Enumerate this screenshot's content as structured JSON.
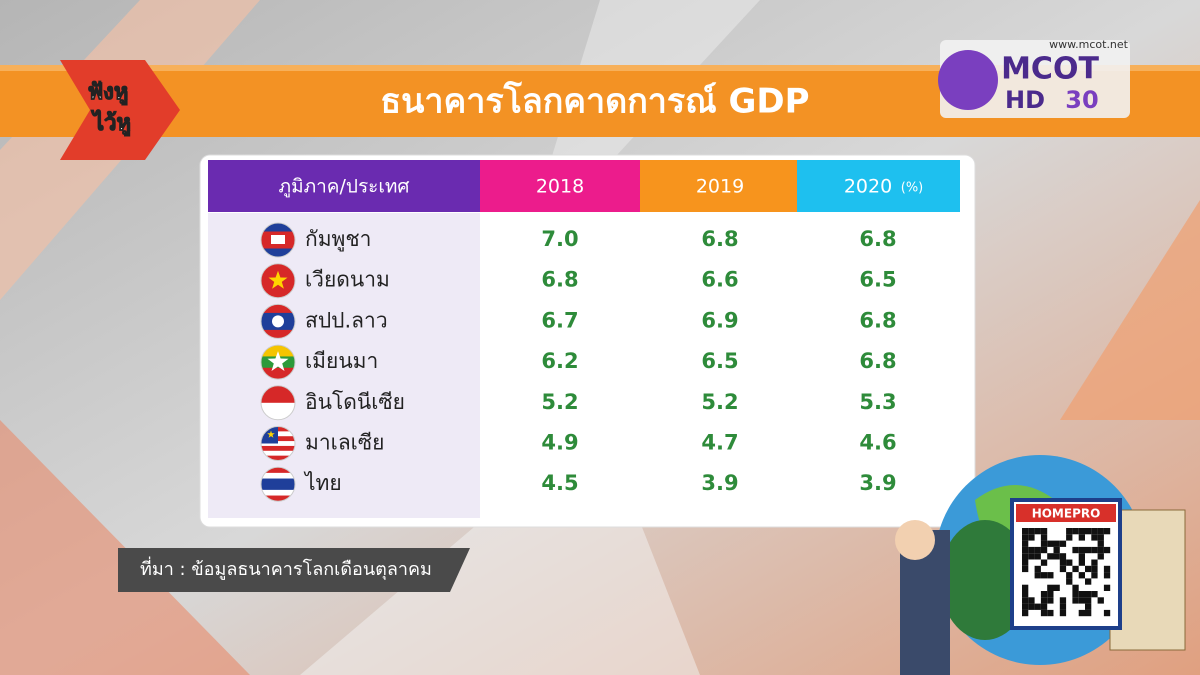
{
  "header": {
    "logo_lines": [
      "ฟังหู",
      "ไว้หู"
    ],
    "title": "ธนาคารโลกคาดการณ์ GDP",
    "channel": {
      "url": "www.mcot.net",
      "name": "MCOT",
      "hd": "HD",
      "number": "30"
    }
  },
  "table": {
    "columns": [
      "ภูมิภาค/ประเทศ",
      "2018",
      "2019",
      "2020"
    ],
    "unit": "(%)",
    "rows": [
      [
        "กัมพูชา",
        "7.0",
        "6.8",
        "6.8"
      ],
      [
        "เวียดนาม",
        "6.8",
        "6.6",
        "6.5"
      ],
      [
        "สปป.ลาว",
        "6.7",
        "6.9",
        "6.8"
      ],
      [
        "เมียนมา",
        "6.2",
        "6.5",
        "6.8"
      ],
      [
        "อินโดนีเซีย",
        "5.2",
        "5.2",
        "5.3"
      ],
      [
        "มาเลเซีย",
        "4.9",
        "4.7",
        "4.6"
      ],
      [
        "ไทย",
        "4.5",
        "3.9",
        "3.9"
      ]
    ]
  },
  "source": "ที่มา : ข้อมูลธนาคารโลกเดือนตุลาคม",
  "qr": {
    "label": "HOMEPRO"
  }
}
